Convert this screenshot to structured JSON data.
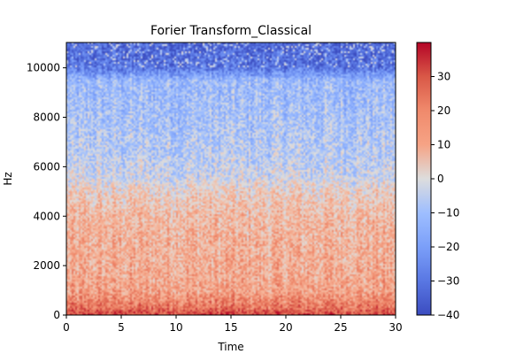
{
  "chart_data": {
    "type": "heatmap",
    "title": "Forier Transform_Classical",
    "xlabel": "Time",
    "ylabel": "Hz",
    "xlim": [
      0,
      30
    ],
    "ylim": [
      0,
      11025
    ],
    "xticks": [
      0,
      5,
      10,
      15,
      20,
      25,
      30
    ],
    "yticks": [
      0,
      2000,
      4000,
      6000,
      8000,
      10000
    ],
    "colorbar": {
      "colormap": "coolwarm",
      "range": [
        -40,
        40
      ],
      "ticks": [
        -40,
        -30,
        -20,
        -10,
        0,
        10,
        20,
        30
      ],
      "tick_labels": [
        "−40",
        "−30",
        "−20",
        "−10",
        "0",
        "10",
        "20",
        "30"
      ]
    },
    "grid": false,
    "legend": "none",
    "level_profile": [
      {
        "hz": 0,
        "db": 32
      },
      {
        "hz": 300,
        "db": 24
      },
      {
        "hz": 1000,
        "db": 14
      },
      {
        "hz": 2000,
        "db": 12
      },
      {
        "hz": 3000,
        "db": 11
      },
      {
        "hz": 4000,
        "db": 9
      },
      {
        "hz": 5000,
        "db": 4
      },
      {
        "hz": 5500,
        "db": -2
      },
      {
        "hz": 6500,
        "db": -6
      },
      {
        "hz": 8000,
        "db": -9
      },
      {
        "hz": 9500,
        "db": -12
      },
      {
        "hz": 10000,
        "db": -30
      },
      {
        "hz": 11025,
        "db": -34
      }
    ]
  },
  "colors": {
    "cold": "#3b4cc0",
    "neutral": "#dddddd",
    "hot": "#b40426"
  }
}
